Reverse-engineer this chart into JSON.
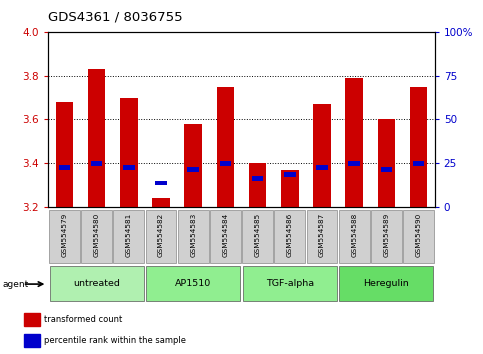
{
  "title": "GDS4361 / 8036755",
  "samples": [
    "GSM554579",
    "GSM554580",
    "GSM554581",
    "GSM554582",
    "GSM554583",
    "GSM554584",
    "GSM554585",
    "GSM554586",
    "GSM554587",
    "GSM554588",
    "GSM554589",
    "GSM554590"
  ],
  "red_values": [
    3.68,
    3.83,
    3.7,
    3.24,
    3.58,
    3.75,
    3.4,
    3.37,
    3.67,
    3.79,
    3.6,
    3.75
  ],
  "blue_values": [
    3.38,
    3.4,
    3.38,
    3.31,
    3.37,
    3.4,
    3.33,
    3.35,
    3.38,
    3.4,
    3.37,
    3.4
  ],
  "ymin": 3.2,
  "ymax": 4.0,
  "yticks_left": [
    3.2,
    3.4,
    3.6,
    3.8,
    4.0
  ],
  "right_tick_labels": [
    "0",
    "25",
    "50",
    "75",
    "100%"
  ],
  "right_tick_vals": [
    0,
    25,
    50,
    75,
    100
  ],
  "bar_width": 0.55,
  "bar_color": "#cc0000",
  "blue_color": "#0000cc",
  "agent_groups": [
    {
      "label": "untreated",
      "start": 0,
      "end": 3,
      "color": "#b0f0b0"
    },
    {
      "label": "AP1510",
      "start": 3,
      "end": 6,
      "color": "#90ee90"
    },
    {
      "label": "TGF-alpha",
      "start": 6,
      "end": 9,
      "color": "#90ee90"
    },
    {
      "label": "Heregulin",
      "start": 9,
      "end": 12,
      "color": "#66dd66"
    }
  ],
  "legend_items": [
    {
      "label": "transformed count",
      "color": "#cc0000"
    },
    {
      "label": "percentile rank within the sample",
      "color": "#0000cc"
    }
  ],
  "agent_label": "agent",
  "left_tick_color": "#cc0000",
  "right_tick_color": "#0000cc",
  "gray_label_bg": "#d0d0d0"
}
